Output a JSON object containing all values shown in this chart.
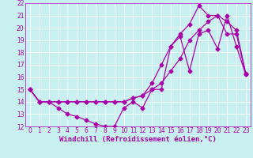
{
  "title": "",
  "xlabel": "Windchill (Refroidissement éolien,°C)",
  "ylabel": "",
  "background_color": "#c8f0f0",
  "grid_color": "#ffffff",
  "line_color": "#aa00aa",
  "xlim": [
    -0.5,
    23.5
  ],
  "ylim": [
    12,
    22
  ],
  "xticks": [
    0,
    1,
    2,
    3,
    4,
    5,
    6,
    7,
    8,
    9,
    10,
    11,
    12,
    13,
    14,
    15,
    16,
    17,
    18,
    19,
    20,
    21,
    22,
    23
  ],
  "yticks": [
    12,
    13,
    14,
    15,
    16,
    17,
    18,
    19,
    20,
    21,
    22
  ],
  "line1_x": [
    0,
    1,
    2,
    3,
    4,
    5,
    6,
    7,
    8,
    9,
    10,
    11,
    12,
    13,
    14,
    15,
    16,
    17,
    18,
    19,
    20,
    21,
    22,
    23
  ],
  "line1_y": [
    15,
    14,
    14,
    13.5,
    13,
    12.8,
    12.5,
    12.2,
    12,
    12,
    13.5,
    14,
    13.5,
    15,
    15,
    18.5,
    19.3,
    16.5,
    19.5,
    19.8,
    18.3,
    21,
    18.5,
    16.2
  ],
  "line2_x": [
    0,
    1,
    2,
    3,
    4,
    5,
    6,
    7,
    8,
    9,
    10,
    11,
    12,
    13,
    14,
    15,
    16,
    17,
    18,
    19,
    20,
    21,
    22,
    23
  ],
  "line2_y": [
    15,
    14,
    14,
    14,
    14,
    14,
    14,
    14,
    14,
    14,
    14,
    14.3,
    14.5,
    15.5,
    17,
    18.5,
    19.5,
    20.3,
    21.8,
    21,
    21,
    20.5,
    19.8,
    16.3
  ],
  "line3_x": [
    0,
    1,
    2,
    3,
    4,
    5,
    6,
    7,
    8,
    9,
    10,
    11,
    12,
    13,
    14,
    15,
    16,
    17,
    18,
    19,
    20,
    21,
    22,
    23
  ],
  "line3_y": [
    15,
    14,
    14,
    14,
    14,
    14,
    14,
    14,
    14,
    14,
    14,
    14.3,
    14.5,
    15,
    15.5,
    16.5,
    17.5,
    19,
    19.8,
    20.5,
    21,
    19.5,
    19.5,
    16.2
  ],
  "marker_size": 2.5,
  "line_width": 0.9,
  "tick_fontsize": 5.5,
  "xlabel_fontsize": 6.5
}
